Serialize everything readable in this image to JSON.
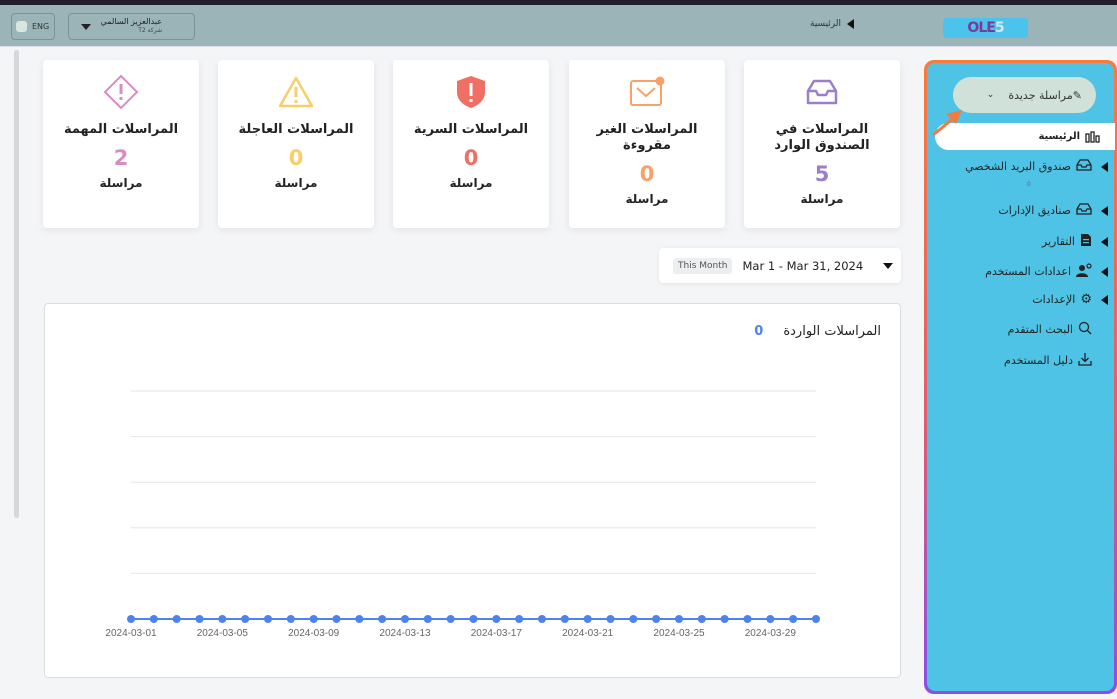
{
  "header": {
    "lang": "ENG",
    "user_name": "عبدالعزيز السالمي",
    "user_company": "شركة T2",
    "breadcrumb": "الرئيسية",
    "logo_text": "OLE",
    "logo_num": "5"
  },
  "cards": [
    {
      "title": "المراسلات في الصندوق الوارد",
      "count": "5",
      "unit": "مراسلة",
      "color": "#9b7fc9",
      "icon": "inbox-icon"
    },
    {
      "title": "المراسلات الغير مقروءة",
      "count": "0",
      "unit": "مراسلة",
      "color": "#f6a26a",
      "icon": "unread-mail-icon"
    },
    {
      "title": "المراسلات السرية",
      "count": "0",
      "unit": "مراسلة",
      "color": "#ef6f64",
      "icon": "shield-alert-icon"
    },
    {
      "title": "المراسلات العاجلة",
      "count": "0",
      "unit": "مراسلة",
      "color": "#f7cf6a",
      "icon": "warning-icon"
    },
    {
      "title": "المراسلات المهمة",
      "count": "2",
      "unit": "مراسلة",
      "color": "#d98cc3",
      "icon": "diamond-alert-icon"
    }
  ],
  "date_filter": {
    "preset": "This Month",
    "range": "Mar 1 - Mar 31, 2024"
  },
  "chart_data": {
    "type": "line",
    "title": "المراسلات الواردة",
    "total": "0",
    "color": "#4d82f0",
    "x": [
      "2024-03-01",
      "2024-03-02",
      "2024-03-03",
      "2024-03-04",
      "2024-03-05",
      "2024-03-06",
      "2024-03-07",
      "2024-03-08",
      "2024-03-09",
      "2024-03-10",
      "2024-03-11",
      "2024-03-12",
      "2024-03-13",
      "2024-03-14",
      "2024-03-15",
      "2024-03-16",
      "2024-03-17",
      "2024-03-18",
      "2024-03-19",
      "2024-03-20",
      "2024-03-21",
      "2024-03-22",
      "2024-03-23",
      "2024-03-24",
      "2024-03-25",
      "2024-03-26",
      "2024-03-27",
      "2024-03-28",
      "2024-03-29",
      "2024-03-30",
      "2024-03-31"
    ],
    "y": [
      0,
      0,
      0,
      0,
      0,
      0,
      0,
      0,
      0,
      0,
      0,
      0,
      0,
      0,
      0,
      0,
      0,
      0,
      0,
      0,
      0,
      0,
      0,
      0,
      0,
      0,
      0,
      0,
      0,
      0,
      0
    ],
    "tick_labels": [
      "2024-03-01",
      "2024-03-05",
      "2024-03-09",
      "2024-03-13",
      "2024-03-17",
      "2024-03-21",
      "2024-03-25",
      "2024-03-29"
    ],
    "grid": true
  },
  "sidebar": {
    "new_message": "مراسلة جديدة",
    "home": "الرئيسية",
    "personal_badge": "0",
    "items": [
      {
        "label": "صندوق البريد الشخصي",
        "icon": "inbox-icon",
        "expandable": true
      },
      {
        "label": "صناديق الإدارات",
        "icon": "inbox-icon",
        "expandable": true
      },
      {
        "label": "التقارير",
        "icon": "report-icon",
        "expandable": true
      },
      {
        "label": "اعدادات المستخدم",
        "icon": "user-settings-icon",
        "expandable": true
      },
      {
        "label": "الإعدادات",
        "icon": "gear-icon",
        "expandable": true
      },
      {
        "label": "البحث المتقدم",
        "icon": "search-icon",
        "expandable": false
      },
      {
        "label": "دليل المستخدم",
        "icon": "download-icon",
        "expandable": false
      }
    ]
  }
}
